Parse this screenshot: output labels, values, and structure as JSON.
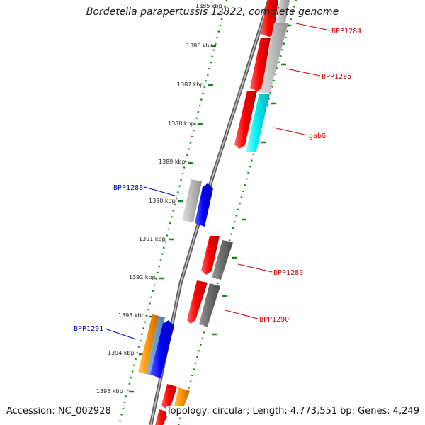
{
  "title": "Bordetella parapertussis 12822, complete genome",
  "footer": {
    "accession": "Accession: NC_002928",
    "summary": "Topology: circular; Length: 4,773,551 bp; Genes: 4,249"
  },
  "colors": {
    "backbone": "#8c8c8c",
    "dots": "#1e7f1e",
    "forward_label": "#cc0000",
    "reverse_label": "#0000cc"
  },
  "ticks": [
    {
      "label": "1385 kbp"
    },
    {
      "label": "1386 kbp"
    },
    {
      "label": "1387 kbp"
    },
    {
      "label": "1388 kbp"
    },
    {
      "label": "1389 kbp"
    },
    {
      "label": "1390 kbp"
    },
    {
      "label": "1391 kbp"
    },
    {
      "label": "1392 kbp"
    },
    {
      "label": "1393 kbp"
    },
    {
      "label": "1394 kbp"
    },
    {
      "label": "1395 kbp"
    }
  ],
  "labels": [
    {
      "name": "gene-label-bpp1284",
      "text": "BPP1284",
      "color": "#cc0000"
    },
    {
      "name": "gene-label-bpp1285",
      "text": "BPP1285",
      "color": "#cc0000"
    },
    {
      "name": "gene-label-gabg",
      "text": "gabG",
      "color": "#cc0000"
    },
    {
      "name": "gene-label-bpp1288",
      "text": "BPP1288",
      "color": "#0000cc"
    },
    {
      "name": "gene-label-bpp1289",
      "text": "BPP1289",
      "color": "#cc0000"
    },
    {
      "name": "gene-label-bpp1290",
      "text": "BPP1290",
      "color": "#cc0000"
    },
    {
      "name": "gene-label-bpp1291",
      "text": "BPP1291",
      "color": "#0000cc"
    }
  ]
}
